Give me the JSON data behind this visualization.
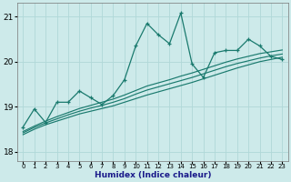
{
  "xlabel": "Humidex (Indice chaleur)",
  "xlim": [
    -0.5,
    23.5
  ],
  "ylim": [
    17.8,
    21.3
  ],
  "yticks": [
    18,
    19,
    20,
    21
  ],
  "xticks": [
    0,
    1,
    2,
    3,
    4,
    5,
    6,
    7,
    8,
    9,
    10,
    11,
    12,
    13,
    14,
    15,
    16,
    17,
    18,
    19,
    20,
    21,
    22,
    23
  ],
  "background_color": "#cdeaea",
  "grid_color": "#b0d8d8",
  "line_color": "#1a7a6e",
  "curve_jagged": [
    18.55,
    18.95,
    18.65,
    19.1,
    19.1,
    19.35,
    19.2,
    19.05,
    19.25,
    19.6,
    20.35,
    20.85,
    20.6,
    20.4,
    21.08,
    19.95,
    19.65,
    20.2,
    20.25,
    20.25,
    20.5,
    20.35,
    20.12,
    20.05
  ],
  "curve_linear1": [
    18.38,
    18.5,
    18.6,
    18.68,
    18.76,
    18.84,
    18.9,
    18.96,
    19.02,
    19.1,
    19.18,
    19.26,
    19.33,
    19.4,
    19.47,
    19.54,
    19.62,
    19.7,
    19.78,
    19.86,
    19.93,
    20.0,
    20.05,
    20.1
  ],
  "curve_linear2": [
    18.42,
    18.54,
    18.64,
    18.73,
    18.82,
    18.9,
    18.97,
    19.03,
    19.1,
    19.18,
    19.28,
    19.37,
    19.44,
    19.51,
    19.58,
    19.65,
    19.73,
    19.81,
    19.89,
    19.96,
    20.02,
    20.08,
    20.13,
    20.17
  ],
  "curve_linear3": [
    18.45,
    18.57,
    18.68,
    18.78,
    18.87,
    18.96,
    19.03,
    19.1,
    19.17,
    19.26,
    19.36,
    19.46,
    19.53,
    19.6,
    19.68,
    19.75,
    19.83,
    19.91,
    19.99,
    20.06,
    20.12,
    20.18,
    20.22,
    20.26
  ]
}
